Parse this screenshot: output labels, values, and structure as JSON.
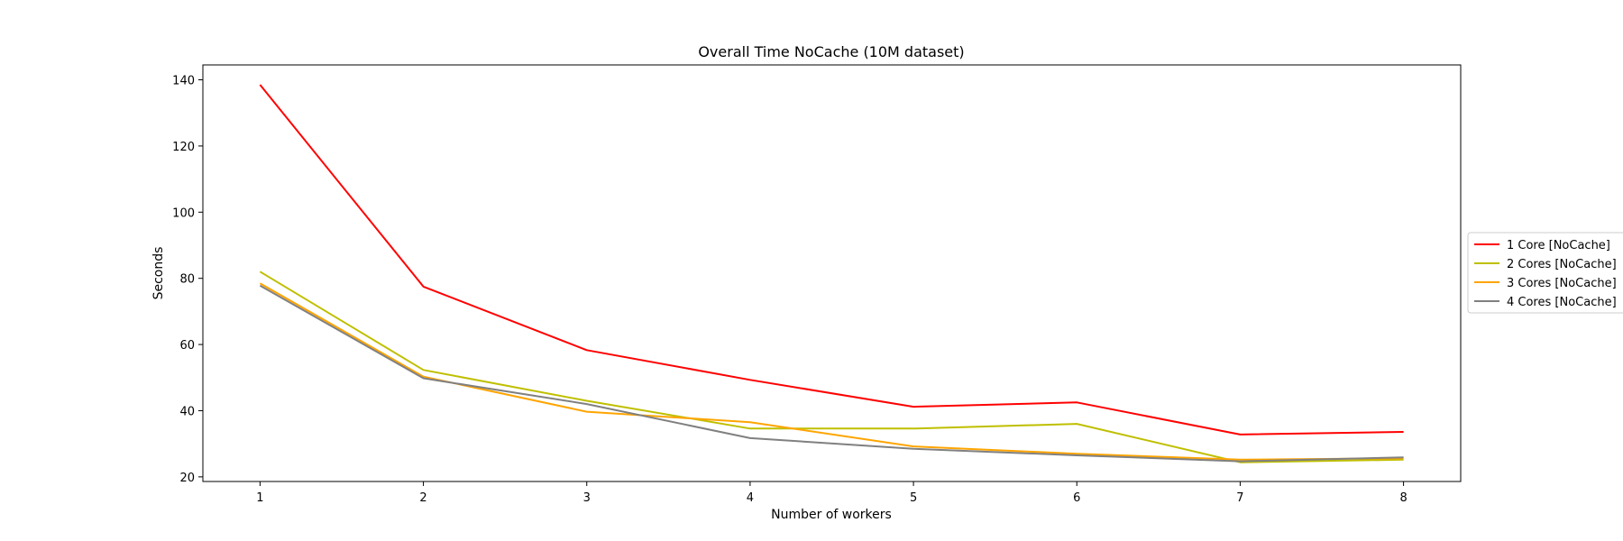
{
  "chart_data": {
    "type": "line",
    "title": "Overall Time NoCache (10M dataset)",
    "xlabel": "Number of workers",
    "ylabel": "Seconds",
    "x": [
      1,
      2,
      3,
      4,
      5,
      6,
      7,
      8
    ],
    "xticks": [
      "1",
      "2",
      "3",
      "4",
      "5",
      "6",
      "7",
      "8"
    ],
    "yticks": [
      "20",
      "40",
      "60",
      "80",
      "100",
      "120",
      "140"
    ],
    "xlim": [
      0.65,
      8.35
    ],
    "ylim": [
      18.6,
      144.5
    ],
    "grid": false,
    "legend_position": "right, outside plot area",
    "series": [
      {
        "name": "1 Core [NoCache]",
        "color": "#ff0000",
        "values": [
          138.5,
          77.5,
          58.3,
          49.3,
          41.2,
          42.5,
          32.8,
          33.6
        ]
      },
      {
        "name": "2 Cores [NoCache]",
        "color": "#bfbf00",
        "values": [
          82.0,
          52.3,
          43.0,
          34.6,
          34.6,
          36.0,
          24.4,
          25.2
        ]
      },
      {
        "name": "3 Cores [NoCache]",
        "color": "#ffa500",
        "values": [
          78.5,
          50.3,
          39.7,
          36.5,
          29.2,
          27.0,
          25.2,
          25.6
        ]
      },
      {
        "name": "4 Cores [NoCache]",
        "color": "#808080",
        "values": [
          77.8,
          49.8,
          42.0,
          31.7,
          28.5,
          26.5,
          24.7,
          25.9
        ]
      }
    ]
  }
}
